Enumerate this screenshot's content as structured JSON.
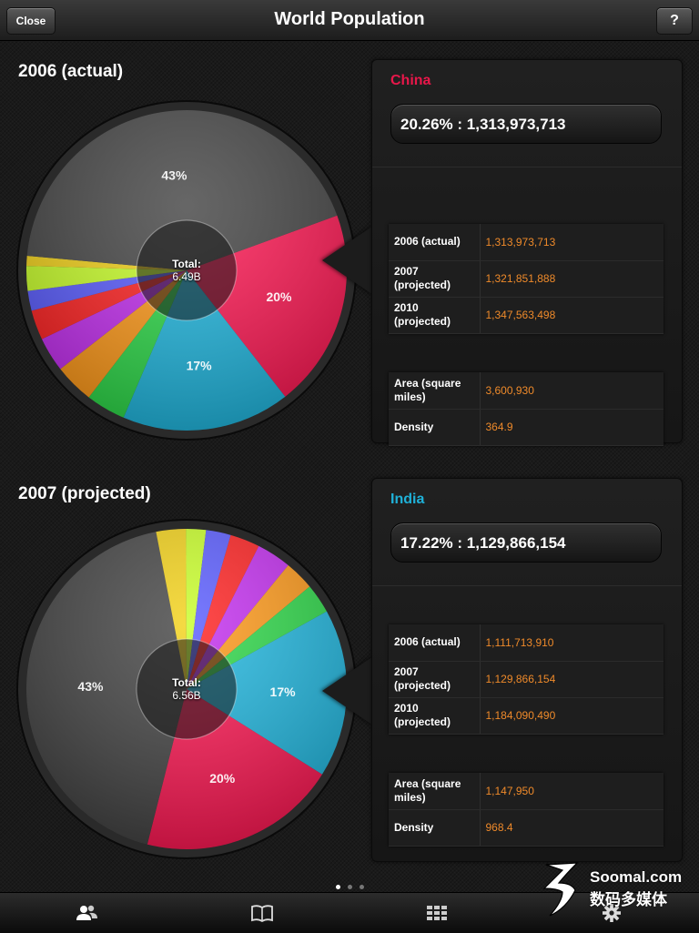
{
  "app": {
    "title": "World Population",
    "close_label": "Close",
    "help_label": "?"
  },
  "sections": [
    {
      "title": "2006 (actual)",
      "total_label": "Total:",
      "total_value": "6.49B",
      "slice_labels": {
        "china": "20%",
        "india": "17%",
        "other": "43%"
      },
      "panel": {
        "country": "China",
        "country_color": "#e8174a",
        "stat": "20.26% : 1,313,973,713",
        "rows": [
          {
            "label": "2006 (actual)",
            "value": "1,313,973,713"
          },
          {
            "label": "2007 (projected)",
            "value": "1,321,851,888"
          },
          {
            "label": "2010 (projected)",
            "value": "1,347,563,498"
          }
        ],
        "facts": [
          {
            "label": "Area (square miles)",
            "value": "3,600,930"
          },
          {
            "label": "Density",
            "value": "364.9"
          }
        ]
      }
    },
    {
      "title": "2007 (projected)",
      "total_label": "Total:",
      "total_value": "6.56B",
      "slice_labels": {
        "china": "20%",
        "india": "17%",
        "other": "43%"
      },
      "panel": {
        "country": "India",
        "country_color": "#1fb1d8",
        "stat": "17.22% : 1,129,866,154",
        "rows": [
          {
            "label": "2006 (actual)",
            "value": "1,111,713,910"
          },
          {
            "label": "2007 (projected)",
            "value": "1,129,866,154"
          },
          {
            "label": "2010 (projected)",
            "value": "1,184,090,490"
          }
        ],
        "facts": [
          {
            "label": "Area (square miles)",
            "value": "1,147,950"
          },
          {
            "label": "Density",
            "value": "968.4"
          }
        ]
      }
    }
  ],
  "chart_data": [
    {
      "type": "pie",
      "title": "2006 (actual)",
      "center_label": "Total: 6.49B",
      "slices": [
        {
          "value": 20,
          "color": "#ff1a55"
        },
        {
          "value": 17,
          "color": "#22b8e0"
        },
        {
          "value": 4,
          "color": "#2fd94a"
        },
        {
          "value": 4,
          "color": "#ff9a1a"
        },
        {
          "value": 3.5,
          "color": "#c42ff0"
        },
        {
          "value": 3,
          "color": "#ff2222"
        },
        {
          "value": 2,
          "color": "#5a5cff"
        },
        {
          "value": 2.5,
          "color": "#c9ff2a"
        },
        {
          "value": 1,
          "color": "#f3d21a"
        },
        {
          "value": 43,
          "color": "#454545"
        }
      ],
      "rotation": 70,
      "labels": [
        {
          "text": "20%",
          "slice": 0
        },
        {
          "text": "17%",
          "slice": 1
        },
        {
          "text": "43%",
          "slice": 9
        }
      ]
    },
    {
      "type": "pie",
      "title": "2007 (projected)",
      "center_label": "Total: 6.56B",
      "slices": [
        {
          "value": 17,
          "color": "#22b8e0"
        },
        {
          "value": 20,
          "color": "#ff1a55"
        },
        {
          "value": 43,
          "color": "#454545"
        },
        {
          "value": 3,
          "color": "#f3d21a"
        },
        {
          "value": 2,
          "color": "#c9ff2a"
        },
        {
          "value": 2.5,
          "color": "#5a5cff"
        },
        {
          "value": 3,
          "color": "#ff2222"
        },
        {
          "value": 3.5,
          "color": "#c42ff0"
        },
        {
          "value": 3,
          "color": "#ff9a1a"
        },
        {
          "value": 3,
          "color": "#2fd94a"
        }
      ],
      "rotation": 61,
      "labels": [
        {
          "text": "17%",
          "slice": 0
        },
        {
          "text": "20%",
          "slice": 1
        },
        {
          "text": "43%",
          "slice": 2
        }
      ]
    }
  ],
  "pager": {
    "pages": 3,
    "current": 0
  },
  "tabbar": {
    "icons": [
      "people-icon",
      "book-icon",
      "grid-icon",
      "gear-icon"
    ]
  },
  "watermark": {
    "line1": "Soomal.com",
    "line2": "数码多媒体"
  }
}
